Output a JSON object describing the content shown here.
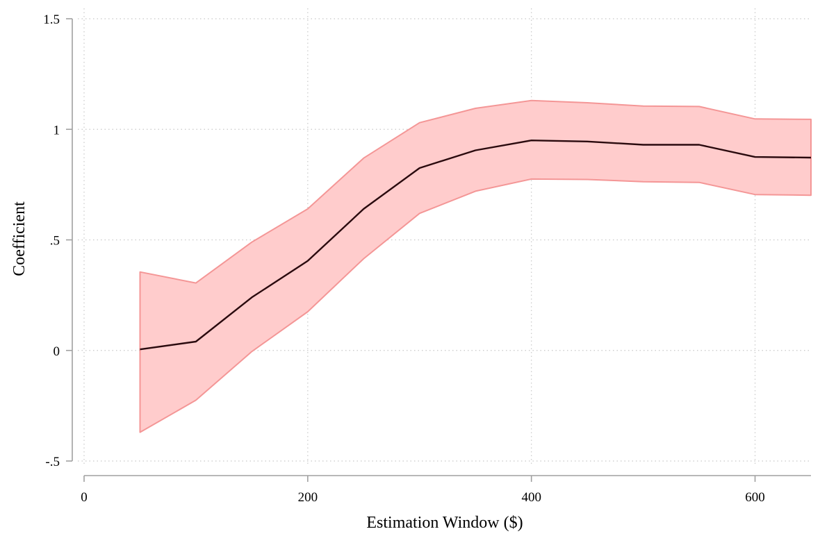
{
  "chart_data": {
    "type": "area",
    "xlabel": "Estimation Window ($)",
    "ylabel": "Coefficient",
    "xlim": [
      0,
      650
    ],
    "ylim": [
      -0.5,
      1.5
    ],
    "x_ticks": [
      0,
      200,
      400,
      600
    ],
    "x_tick_labels": [
      "0",
      "200",
      "400",
      "600"
    ],
    "y_ticks": [
      -0.5,
      0,
      0.5,
      1,
      1.5
    ],
    "y_tick_labels": [
      "-.5",
      "0",
      ".5",
      "1",
      "1.5"
    ],
    "grid": true,
    "legend": false,
    "x": [
      50,
      100,
      150,
      200,
      250,
      300,
      350,
      400,
      450,
      500,
      550,
      600,
      650
    ],
    "series": [
      {
        "type": "line",
        "values": [
          0.005,
          0.04,
          0.24,
          0.405,
          0.64,
          0.825,
          0.905,
          0.95,
          0.945,
          0.93,
          0.93,
          0.875,
          0.872
        ]
      },
      {
        "type": "band",
        "lower": [
          -0.37,
          -0.225,
          -0.005,
          0.175,
          0.415,
          0.62,
          0.72,
          0.775,
          0.773,
          0.763,
          0.76,
          0.705,
          0.702
        ],
        "upper": [
          0.355,
          0.305,
          0.49,
          0.64,
          0.87,
          1.03,
          1.095,
          1.13,
          1.12,
          1.105,
          1.103,
          1.047,
          1.045
        ]
      }
    ],
    "colors": {
      "band_fill": "#ffcccc",
      "band_edge": "#f49696",
      "line": "#2a0a0e",
      "grid": "#c8c8c8",
      "axis": "#a0a0a0"
    }
  }
}
